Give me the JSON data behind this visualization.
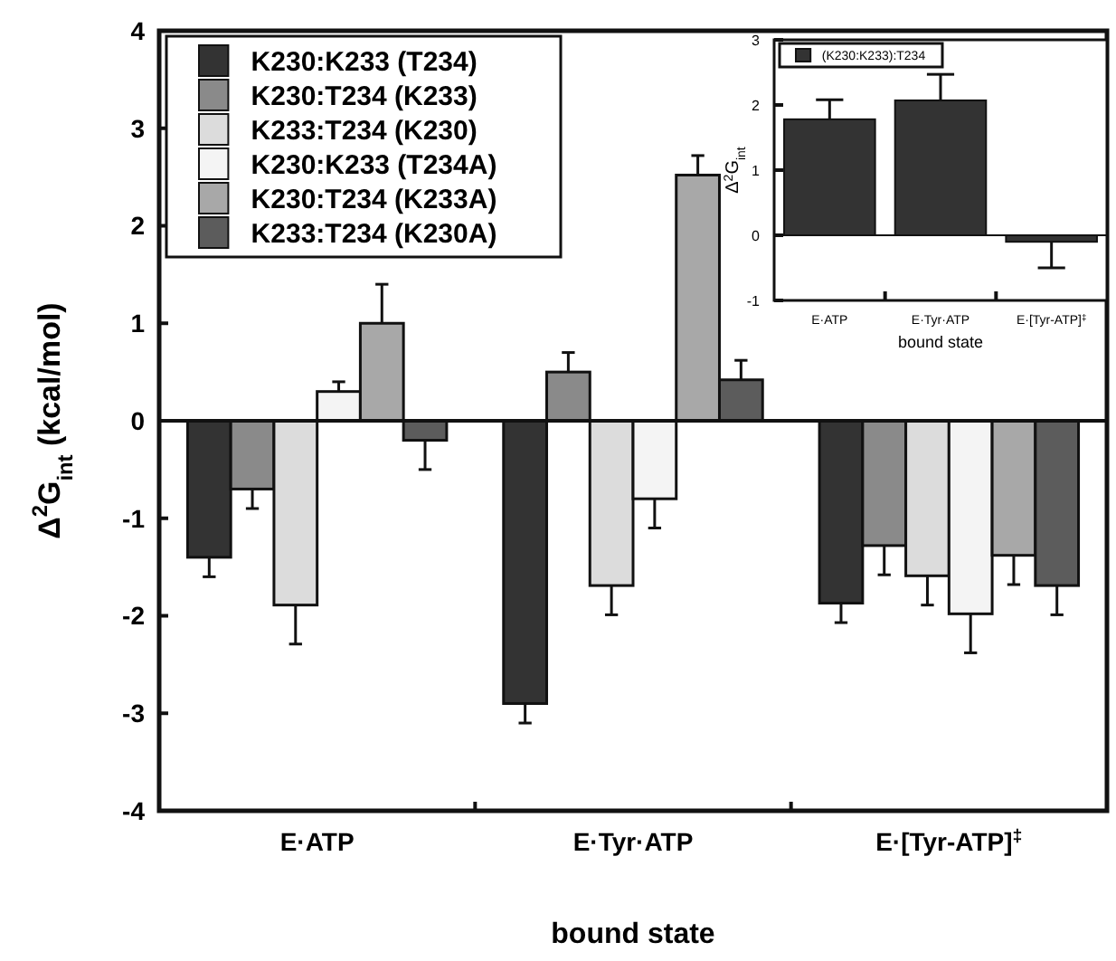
{
  "chart_data": [
    {
      "type": "bar",
      "xlabel": "bound state",
      "ylabel": "Δ$^{2}$G$_{int}$ (kcal/mol)",
      "categories": [
        "E·ATP",
        "E·Tyr·ATP",
        "E·[Tyr-ATP]$^{‡}$"
      ],
      "ylim": [
        -4,
        4
      ],
      "yticks": [
        -4,
        -3,
        -2,
        -1,
        0,
        1,
        2,
        3,
        4
      ],
      "legend": "top left",
      "ref_lines": [
        {
          "axis": "y",
          "value": 0
        }
      ],
      "series": [
        {
          "name": "K230:K233 (T234)",
          "color": "#333333",
          "values": [
            -1.4,
            -2.9,
            -1.87
          ],
          "errors": [
            0.2,
            0.2,
            0.2
          ]
        },
        {
          "name": "K230:T234 (K233)",
          "color": "#8a8a8a",
          "values": [
            -0.7,
            0.5,
            -1.28
          ],
          "errors": [
            0.2,
            0.2,
            0.3
          ]
        },
        {
          "name": "K233:T234 (K230)",
          "color": "#dcdcdc",
          "values": [
            -1.89,
            -1.69,
            -1.59
          ],
          "errors": [
            0.4,
            0.3,
            0.3
          ]
        },
        {
          "name": "K230:K233 (T234A)",
          "color": "#f4f4f4",
          "values": [
            0.3,
            -0.8,
            -1.98
          ],
          "errors": [
            0.1,
            0.3,
            0.4
          ]
        },
        {
          "name": "K230:T234 (K233A)",
          "color": "#a8a8a8",
          "values": [
            1.0,
            2.52,
            -1.38
          ],
          "errors": [
            0.4,
            0.2,
            0.3
          ]
        },
        {
          "name": "K233:T234 (K230A)",
          "color": "#5c5c5c",
          "values": [
            -0.2,
            0.42,
            -1.69
          ],
          "errors": [
            0.3,
            0.2,
            0.3
          ]
        }
      ]
    },
    {
      "type": "bar",
      "xlabel": "bound state",
      "ylabel": "Δ$^{2}$G$_{int}$",
      "categories": [
        "E·ATP",
        "E·Tyr·ATP",
        "E·[Tyr-ATP]$^{‡}$"
      ],
      "ylim": [
        -1,
        3
      ],
      "yticks": [
        -1,
        0,
        1,
        2,
        3
      ],
      "legend": "top left",
      "ref_lines": [
        {
          "axis": "y",
          "value": 0
        }
      ],
      "series": [
        {
          "name": "(K230:K233):T234",
          "color": "#333333",
          "values": [
            1.78,
            2.07,
            -0.1
          ],
          "errors": [
            0.3,
            0.4,
            0.4
          ]
        }
      ]
    }
  ]
}
